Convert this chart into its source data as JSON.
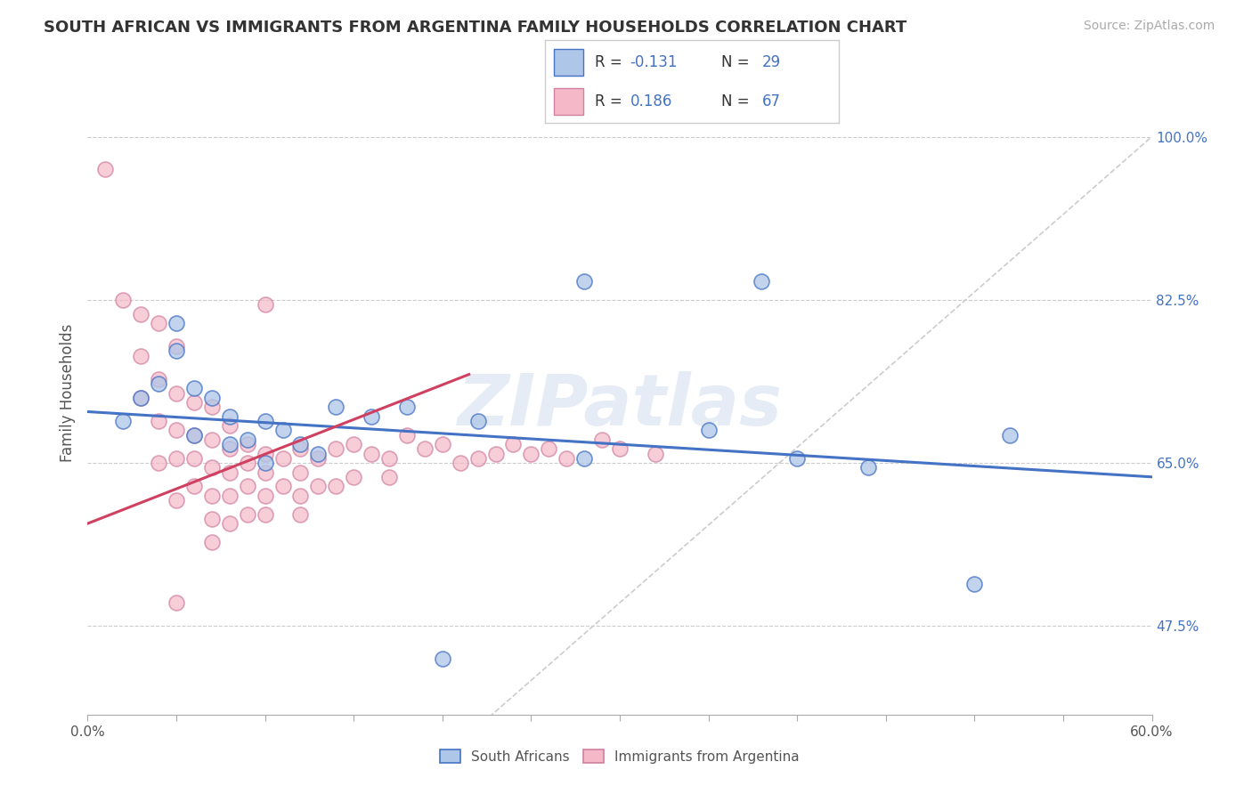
{
  "title": "SOUTH AFRICAN VS IMMIGRANTS FROM ARGENTINA FAMILY HOUSEHOLDS CORRELATION CHART",
  "source": "Source: ZipAtlas.com",
  "ylabel": "Family Households",
  "ytick_labels": [
    "47.5%",
    "65.0%",
    "82.5%",
    "100.0%"
  ],
  "ytick_values": [
    0.475,
    0.65,
    0.825,
    1.0
  ],
  "xlim": [
    0.0,
    0.6
  ],
  "ylim": [
    0.38,
    1.07
  ],
  "r_blue": -0.131,
  "n_blue": 29,
  "r_pink": 0.186,
  "n_pink": 67,
  "legend_label_blue": "South Africans",
  "legend_label_pink": "Immigrants from Argentina",
  "blue_color": "#aec6e8",
  "pink_color": "#f4b8c8",
  "line_blue": "#4472c4",
  "line_pink": "#d04060",
  "diagonal_color": "#cccccc",
  "blue_scatter_x": [
    0.02,
    0.03,
    0.04,
    0.05,
    0.05,
    0.06,
    0.06,
    0.07,
    0.08,
    0.08,
    0.09,
    0.1,
    0.1,
    0.11,
    0.12,
    0.13,
    0.14,
    0.16,
    0.18,
    0.22,
    0.28,
    0.35,
    0.38,
    0.44,
    0.5,
    0.52,
    0.28,
    0.4,
    0.2
  ],
  "blue_scatter_y": [
    0.695,
    0.72,
    0.735,
    0.77,
    0.8,
    0.73,
    0.68,
    0.72,
    0.7,
    0.67,
    0.675,
    0.65,
    0.695,
    0.685,
    0.67,
    0.66,
    0.71,
    0.7,
    0.71,
    0.695,
    0.845,
    0.685,
    0.845,
    0.645,
    0.52,
    0.68,
    0.655,
    0.655,
    0.44
  ],
  "pink_scatter_x": [
    0.01,
    0.02,
    0.03,
    0.03,
    0.03,
    0.04,
    0.04,
    0.04,
    0.04,
    0.05,
    0.05,
    0.05,
    0.05,
    0.05,
    0.06,
    0.06,
    0.06,
    0.06,
    0.07,
    0.07,
    0.07,
    0.07,
    0.07,
    0.08,
    0.08,
    0.08,
    0.08,
    0.08,
    0.09,
    0.09,
    0.09,
    0.09,
    0.1,
    0.1,
    0.1,
    0.1,
    0.11,
    0.11,
    0.12,
    0.12,
    0.12,
    0.12,
    0.13,
    0.13,
    0.14,
    0.14,
    0.15,
    0.15,
    0.16,
    0.17,
    0.17,
    0.18,
    0.19,
    0.2,
    0.21,
    0.22,
    0.23,
    0.24,
    0.25,
    0.26,
    0.27,
    0.29,
    0.3,
    0.32,
    0.1,
    0.07,
    0.05
  ],
  "pink_scatter_y": [
    0.965,
    0.825,
    0.81,
    0.765,
    0.72,
    0.8,
    0.74,
    0.695,
    0.65,
    0.775,
    0.725,
    0.685,
    0.655,
    0.61,
    0.715,
    0.68,
    0.655,
    0.625,
    0.71,
    0.675,
    0.645,
    0.615,
    0.59,
    0.69,
    0.665,
    0.64,
    0.615,
    0.585,
    0.67,
    0.65,
    0.625,
    0.595,
    0.66,
    0.64,
    0.615,
    0.595,
    0.655,
    0.625,
    0.665,
    0.64,
    0.615,
    0.595,
    0.655,
    0.625,
    0.665,
    0.625,
    0.67,
    0.635,
    0.66,
    0.655,
    0.635,
    0.68,
    0.665,
    0.67,
    0.65,
    0.655,
    0.66,
    0.67,
    0.66,
    0.665,
    0.655,
    0.675,
    0.665,
    0.66,
    0.82,
    0.565,
    0.5
  ],
  "blue_trendline_x": [
    0.0,
    0.6
  ],
  "blue_trendline_y": [
    0.705,
    0.635
  ],
  "pink_trendline_x": [
    0.0,
    0.215
  ],
  "pink_trendline_y": [
    0.585,
    0.745
  ]
}
